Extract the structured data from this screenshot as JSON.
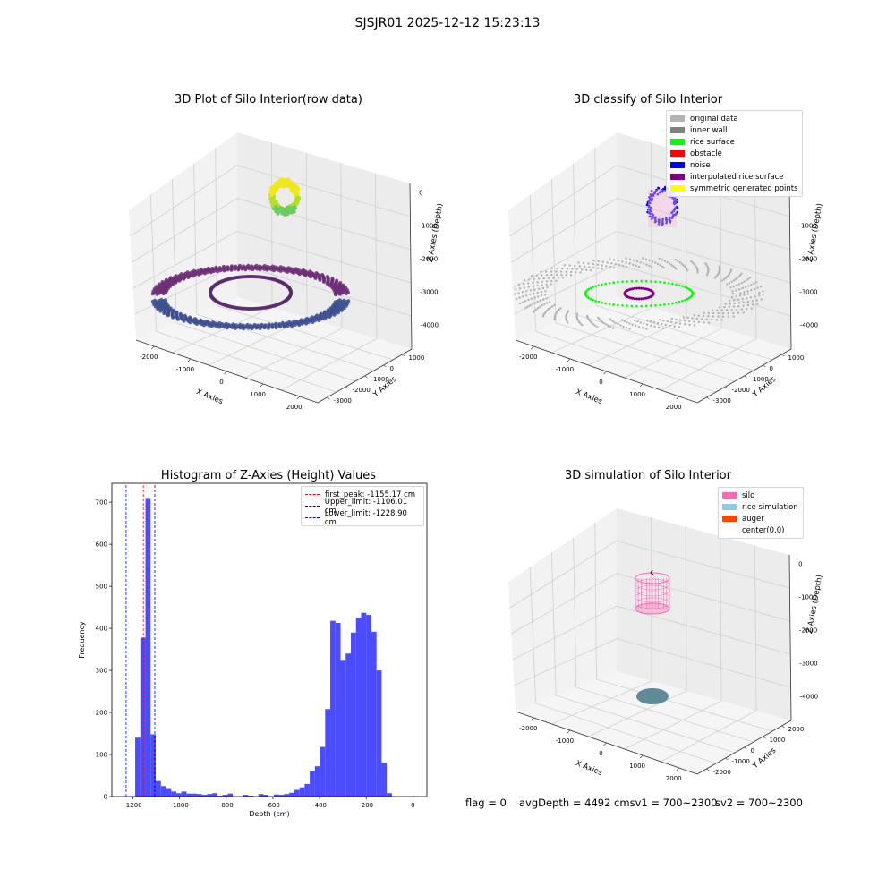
{
  "suptitle": "SJSJR01 2025-12-12 15:23:13",
  "panels": {
    "raw": {
      "title": "3D Plot of Silo Interior(row data)",
      "xlabel": "X Axies",
      "ylabel": "Y Axies",
      "zlabel": "Z Axies (Depth)",
      "xticks": [
        "-2000",
        "-1000",
        "0",
        "1000",
        "2000"
      ],
      "yticks": [
        "1000",
        "0",
        "-1000",
        "-2000",
        "-3000"
      ],
      "zticks": [
        "0",
        "-1000",
        "-2000",
        "-3000",
        "-4000"
      ]
    },
    "classify": {
      "title": "3D classify of Silo Interior",
      "xlabel": "X Axies",
      "ylabel": "Y Axies",
      "zlabel": "Z Axies (Depth)",
      "xticks": [
        "-2000",
        "-1000",
        "0",
        "1000",
        "2000"
      ],
      "yticks": [
        "1000",
        "0",
        "-1000",
        "-2000",
        "-3000"
      ],
      "zticks": [
        "0",
        "-1000",
        "-2000",
        "-3000",
        "-4000"
      ],
      "legend": [
        {
          "label": "original data",
          "color": "#b3b3b3"
        },
        {
          "label": "inner wall",
          "color": "#808080"
        },
        {
          "label": "rice surface",
          "color": "#00ff00"
        },
        {
          "label": "obstacle",
          "color": "#ff0000"
        },
        {
          "label": "noise",
          "color": "#0000ff"
        },
        {
          "label": "interpolated rice surface",
          "color": "#800080"
        },
        {
          "label": "symmetric generated points",
          "color": "#ffff00"
        }
      ]
    },
    "simulation": {
      "title": "3D simulation of Silo Interior",
      "xlabel": "X Axies",
      "ylabel": "Y Axies",
      "zlabel": "Z Axies (Depth)",
      "xticks": [
        "-2000",
        "-1000",
        "0",
        "1000",
        "2000"
      ],
      "yticks": [
        "2000",
        "1000",
        "0",
        "-1000",
        "-2000"
      ],
      "zticks": [
        "0",
        "-1000",
        "-2000",
        "-3000",
        "-4000"
      ],
      "legend": [
        {
          "label": "silo",
          "color": "#ff69b4"
        },
        {
          "label": "rice simulation",
          "color": "#87ceeb"
        },
        {
          "label": "auger",
          "color": "#ff4500"
        },
        {
          "label": "center(0,0)",
          "color": ""
        }
      ]
    }
  },
  "footer": {
    "flag": "flag = 0",
    "avg": "avgDepth = 4492 cmsv1 = 700~2300",
    "sv2": "sv2 = 700~2300"
  },
  "chart_data": [
    {
      "type": "scatter",
      "title": "3D Plot of Silo Interior(row data)",
      "xlabel": "X Axies",
      "ylabel": "Y Axies",
      "zlabel": "Z Axies (Depth)",
      "xlim": [
        -2500,
        2500
      ],
      "ylim": [
        -3000,
        1500
      ],
      "zlim": [
        -4500,
        0
      ],
      "grid": true
    },
    {
      "type": "scatter",
      "title": "3D classify of Silo Interior",
      "xlabel": "X Axies",
      "ylabel": "Y Axies",
      "zlabel": "Z Axies (Depth)",
      "xlim": [
        -2500,
        2500
      ],
      "ylim": [
        -3000,
        1500
      ],
      "zlim": [
        -4500,
        0
      ],
      "legend": [
        "original data",
        "inner wall",
        "rice surface",
        "obstacle",
        "noise",
        "interpolated rice surface",
        "symmetric generated points"
      ],
      "legend_position": "top-right",
      "grid": true
    },
    {
      "type": "bar",
      "title": "Histogram of Z-Axies (Height) Values",
      "xlabel": "Depth (cm)",
      "ylabel": "Frequency",
      "xlim": [
        -1290,
        60
      ],
      "ylim": [
        0,
        745
      ],
      "bin_width": 22,
      "bins_start": [
        -1212,
        -1190,
        -1168,
        -1146,
        -1124,
        -1102,
        -1080,
        -1058,
        -1036,
        -1014,
        -992,
        -970,
        -948,
        -926,
        -904,
        -882,
        -860,
        -838,
        -816,
        -794,
        -772,
        -750,
        -728,
        -706,
        -684,
        -662,
        -640,
        -618,
        -596,
        -574,
        -552,
        -530,
        -508,
        -486,
        -464,
        -442,
        -420,
        -398,
        -376,
        -354,
        -332,
        -310,
        -288,
        -266,
        -244,
        -222,
        -200,
        -178,
        -156,
        -134,
        -112,
        -90,
        -68,
        -46,
        -24,
        -2
      ],
      "values": [
        1,
        140,
        378,
        710,
        148,
        37,
        25,
        18,
        12,
        8,
        12,
        7,
        7,
        6,
        4,
        6,
        8,
        2,
        4,
        7,
        0,
        0,
        4,
        2,
        0,
        6,
        4,
        0,
        5,
        4,
        6,
        9,
        16,
        22,
        30,
        60,
        72,
        118,
        208,
        418,
        413,
        325,
        340,
        390,
        425,
        437,
        432,
        392,
        300,
        80,
        8,
        0,
        0,
        0,
        0,
        1
      ],
      "annotations": [
        {
          "label": "first_peak: -1155.17 cm",
          "x": -1155.17,
          "color": "red",
          "style": "dashed"
        },
        {
          "label": "Upper_limit: -1106.01 cm",
          "x": -1106.01,
          "color": "navy",
          "style": "dashed"
        },
        {
          "label": "Lower_limit: -1228.90 cm",
          "x": -1228.9,
          "color": "blue",
          "style": "dashed"
        }
      ],
      "xticks": [
        "-1200",
        "-1000",
        "-800",
        "-600",
        "-400",
        "-200",
        "0"
      ],
      "yticks": [
        "0",
        "100",
        "200",
        "300",
        "400",
        "500",
        "600",
        "700"
      ],
      "legend_position": "top-right",
      "grid": false
    },
    {
      "type": "scatter",
      "title": "3D simulation of Silo Interior",
      "xlabel": "X Axies",
      "ylabel": "Y Axies",
      "zlabel": "Z Axies (Depth)",
      "xlim": [
        -2500,
        2500
      ],
      "ylim": [
        -2500,
        2500
      ],
      "zlim": [
        -4500,
        0
      ],
      "legend": [
        "silo",
        "rice simulation",
        "auger",
        "center(0,0)"
      ],
      "legend_position": "top-right",
      "grid": true
    }
  ]
}
